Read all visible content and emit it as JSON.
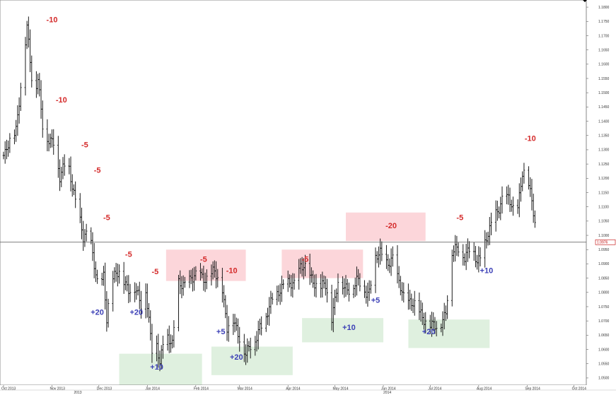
{
  "chart_data": {
    "type": "bar",
    "style": "ohlc-price-bars",
    "title": "",
    "xlabel": "",
    "ylabel": "",
    "ylim": [
      1.0475,
      1.1825
    ],
    "grid": false,
    "legend": "none",
    "current_price": 1.0976,
    "current_price_label": "1.0976",
    "y_ticks": [
      {
        "v": 1.18,
        "label": "1.1800"
      },
      {
        "v": 1.175,
        "label": "1.1750"
      },
      {
        "v": 1.17,
        "label": "1.1700"
      },
      {
        "v": 1.165,
        "label": "1.1650"
      },
      {
        "v": 1.16,
        "label": "1.1600"
      },
      {
        "v": 1.155,
        "label": "1.1550"
      },
      {
        "v": 1.15,
        "label": "1.1500"
      },
      {
        "v": 1.145,
        "label": "1.1450"
      },
      {
        "v": 1.14,
        "label": "1.1400"
      },
      {
        "v": 1.135,
        "label": "1.1350"
      },
      {
        "v": 1.13,
        "label": "1.1300"
      },
      {
        "v": 1.125,
        "label": "1.1250"
      },
      {
        "v": 1.12,
        "label": "1.1200"
      },
      {
        "v": 1.115,
        "label": "1.1150"
      },
      {
        "v": 1.11,
        "label": "1.1100"
      },
      {
        "v": 1.105,
        "label": "1.1050"
      },
      {
        "v": 1.1,
        "label": "1.1000"
      },
      {
        "v": 1.095,
        "label": "1.0950"
      },
      {
        "v": 1.09,
        "label": "1.0900"
      },
      {
        "v": 1.085,
        "label": "1.0850"
      },
      {
        "v": 1.08,
        "label": "1.0800"
      },
      {
        "v": 1.075,
        "label": "1.0750"
      },
      {
        "v": 1.07,
        "label": "1.0700"
      },
      {
        "v": 1.065,
        "label": "1.0650"
      },
      {
        "v": 1.06,
        "label": "1.0600"
      },
      {
        "v": 1.055,
        "label": "1.0550"
      },
      {
        "v": 1.05,
        "label": "1.0500"
      }
    ],
    "x_ticks": [
      {
        "day": 0,
        "label": "Oct 2013"
      },
      {
        "day": 31,
        "label": "Nov 2013"
      },
      {
        "day": 61,
        "label": "Dec 2013"
      },
      {
        "day": 92,
        "label": "Jan 2014"
      },
      {
        "day": 123,
        "label": "Feb 2014"
      },
      {
        "day": 151,
        "label": "Mar 2014"
      },
      {
        "day": 182,
        "label": "Apr 2014"
      },
      {
        "day": 212,
        "label": "May 2014"
      },
      {
        "day": 243,
        "label": "Jun 2014"
      },
      {
        "day": 273,
        "label": "Jul 2014"
      },
      {
        "day": 304,
        "label": "Aug 2014"
      },
      {
        "day": 335,
        "label": "Sep 2014"
      },
      {
        "day": 365,
        "label": "Oct 2014"
      }
    ],
    "x_range_days": [
      0,
      380
    ],
    "year_labels": [
      {
        "day": 45,
        "label": "2013"
      },
      {
        "day": 243,
        "label": "2014"
      }
    ],
    "price_path": [
      [
        1,
        1.128
      ],
      [
        8,
        1.138
      ],
      [
        15,
        1.172
      ],
      [
        19,
        1.15
      ],
      [
        22,
        1.156
      ],
      [
        26,
        1.132
      ],
      [
        32,
        1.134
      ],
      [
        36,
        1.12
      ],
      [
        41,
        1.126
      ],
      [
        46,
        1.113
      ],
      [
        51,
        1.098
      ],
      [
        55,
        1.102
      ],
      [
        61,
        1.079
      ],
      [
        64,
        1.085
      ],
      [
        66,
        1.071
      ],
      [
        69,
        1.086
      ],
      [
        74,
        1.086
      ],
      [
        80,
        1.082
      ],
      [
        84,
        1.081
      ],
      [
        88,
        1.075
      ],
      [
        91,
        1.082
      ],
      [
        95,
        1.06
      ],
      [
        98,
        1.061
      ],
      [
        100,
        1.054
      ],
      [
        103,
        1.068
      ],
      [
        108,
        1.061
      ],
      [
        112,
        1.083
      ],
      [
        117,
        1.084
      ],
      [
        121,
        1.084
      ],
      [
        126,
        1.087
      ],
      [
        131,
        1.084
      ],
      [
        135,
        1.087
      ],
      [
        140,
        1.082
      ],
      [
        143,
        1.067
      ],
      [
        147,
        1.07
      ],
      [
        151,
        1.065
      ],
      [
        155,
        1.058
      ],
      [
        160,
        1.062
      ],
      [
        164,
        1.069
      ],
      [
        168,
        1.07
      ],
      [
        172,
        1.078
      ],
      [
        176,
        1.081
      ],
      [
        181,
        1.082
      ],
      [
        186,
        1.084
      ],
      [
        190,
        1.089
      ],
      [
        194,
        1.087
      ],
      [
        198,
        1.085
      ],
      [
        202,
        1.081
      ],
      [
        206,
        1.082
      ],
      [
        210,
        1.072
      ],
      [
        214,
        1.084
      ],
      [
        218,
        1.081
      ],
      [
        222,
        1.082
      ],
      [
        226,
        1.084
      ],
      [
        231,
        1.08
      ],
      [
        234,
        1.081
      ],
      [
        237,
        1.091
      ],
      [
        241,
        1.093
      ],
      [
        245,
        1.091
      ],
      [
        249,
        1.092
      ],
      [
        252,
        1.084
      ],
      [
        256,
        1.079
      ],
      [
        260,
        1.077
      ],
      [
        264,
        1.074
      ],
      [
        268,
        1.072
      ],
      [
        271,
        1.07
      ],
      [
        274,
        1.068
      ],
      [
        277,
        1.067
      ],
      [
        280,
        1.07
      ],
      [
        283,
        1.074
      ],
      [
        287,
        1.093
      ],
      [
        291,
        1.096
      ],
      [
        295,
        1.093
      ],
      [
        299,
        1.095
      ],
      [
        303,
        1.091
      ],
      [
        307,
        1.096
      ],
      [
        311,
        1.101
      ],
      [
        315,
        1.108
      ],
      [
        319,
        1.113
      ],
      [
        323,
        1.112
      ],
      [
        328,
        1.107
      ],
      [
        332,
        1.122
      ],
      [
        335,
        1.12
      ],
      [
        339,
        1.109
      ],
      [
        342,
        1.099
      ]
    ],
    "zones": [
      {
        "color": "#dff0df",
        "d1": 74,
        "d2": 127,
        "y1": 1.0585,
        "y2": 1.0475
      },
      {
        "color": "#dff0df",
        "d1": 133,
        "d2": 185,
        "y1": 1.061,
        "y2": 1.051
      },
      {
        "color": "#dff0df",
        "d1": 191,
        "d2": 243,
        "y1": 1.071,
        "y2": 1.0625
      },
      {
        "color": "#dff0df",
        "d1": 259,
        "d2": 311,
        "y1": 1.0705,
        "y2": 1.0605
      },
      {
        "color": "#fcd6da",
        "d1": 104,
        "d2": 155,
        "y1": 1.095,
        "y2": 1.084
      },
      {
        "color": "#fcd6da",
        "d1": 178,
        "d2": 230,
        "y1": 1.095,
        "y2": 1.085
      },
      {
        "color": "#fcd6da",
        "d1": 219,
        "d2": 270,
        "y1": 1.108,
        "y2": 1.098
      }
    ],
    "annotations": [
      {
        "text": "-10",
        "color": "#d42a2a",
        "day": 31,
        "v": 1.1747
      },
      {
        "text": "-10",
        "color": "#d42a2a",
        "day": 37,
        "v": 1.1466
      },
      {
        "text": "-5",
        "color": "#d42a2a",
        "day": 52,
        "v": 1.1309
      },
      {
        "text": "-5",
        "color": "#d42a2a",
        "day": 60,
        "v": 1.1219
      },
      {
        "text": "-5",
        "color": "#d42a2a",
        "day": 66,
        "v": 1.1054
      },
      {
        "text": "-5",
        "color": "#d42a2a",
        "day": 80,
        "v": 1.0924
      },
      {
        "text": "-5",
        "color": "#d42a2a",
        "day": 97,
        "v": 1.0864
      },
      {
        "text": "-5",
        "color": "#d42a2a",
        "day": 128,
        "v": 1.0907
      },
      {
        "text": "-10",
        "color": "#d42a2a",
        "day": 146,
        "v": 1.0867
      },
      {
        "text": "-5",
        "color": "#d42a2a",
        "day": 193,
        "v": 1.0907
      },
      {
        "text": "-20",
        "color": "#d42a2a",
        "day": 248,
        "v": 1.1025
      },
      {
        "text": "-5",
        "color": "#d42a2a",
        "day": 292,
        "v": 1.1054
      },
      {
        "text": "-10",
        "color": "#d42a2a",
        "day": 337,
        "v": 1.1331
      },
      {
        "text": "+20",
        "color": "#3b3fb6",
        "day": 60,
        "v": 1.0721
      },
      {
        "text": "+20",
        "color": "#3b3fb6",
        "day": 85,
        "v": 1.0721
      },
      {
        "text": "+5",
        "color": "#3b3fb6",
        "day": 139,
        "v": 1.0653
      },
      {
        "text": "+20",
        "color": "#3b3fb6",
        "day": 149,
        "v": 1.0564
      },
      {
        "text": "+10",
        "color": "#3b3fb6",
        "day": 98,
        "v": 1.0529
      },
      {
        "text": "+10",
        "color": "#3b3fb6",
        "day": 221,
        "v": 1.0668
      },
      {
        "text": "+5",
        "color": "#3b3fb6",
        "day": 238,
        "v": 1.0764
      },
      {
        "text": "+20",
        "color": "#3b3fb6",
        "day": 272,
        "v": 1.0653
      },
      {
        "text": "+10",
        "color": "#3b3fb6",
        "day": 309,
        "v": 1.0868
      }
    ]
  }
}
